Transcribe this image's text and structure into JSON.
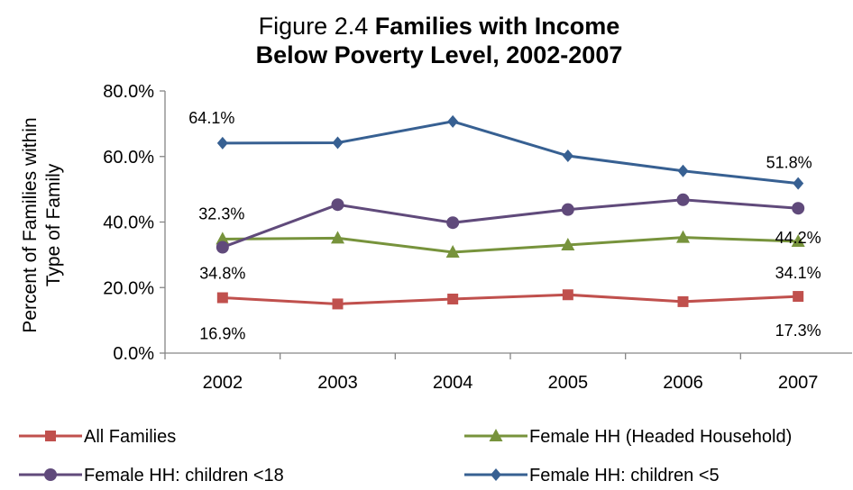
{
  "chart_data": {
    "type": "line",
    "title_prefix": "Figure 2.4 ",
    "title_bold_line1": "Families with Income",
    "title_line2": "Below Poverty Level,  2002-2007",
    "ylabel_line1": "Percent of Families within",
    "ylabel_line2": "Type of Family",
    "xlabel": "",
    "categories": [
      "2002",
      "2003",
      "2004",
      "2005",
      "2006",
      "2007"
    ],
    "ylim": [
      0,
      80
    ],
    "yticks": [
      "0.0%",
      "20.0%",
      "40.0%",
      "60.0%",
      "80.0%"
    ],
    "ytick_values": [
      0,
      20,
      40,
      60,
      80
    ],
    "grid": false,
    "legend_position": "bottom",
    "series": [
      {
        "name": "All Families",
        "color": "#C0504D",
        "marker": "square",
        "values": [
          16.9,
          15.0,
          16.5,
          17.8,
          15.7,
          17.3
        ],
        "labels": [
          {
            "index": 0,
            "text": "16.9%"
          },
          {
            "index": 5,
            "text": "17.3%"
          }
        ]
      },
      {
        "name": "Female HH (Headed Household)",
        "color": "#77933C",
        "marker": "triangle",
        "values": [
          34.8,
          35.1,
          30.8,
          33.0,
          35.3,
          34.1
        ],
        "labels": [
          {
            "index": 0,
            "text": "34.8%"
          },
          {
            "index": 5,
            "text": "34.1%"
          }
        ]
      },
      {
        "name": "Female HH: children <18",
        "color": "#604A7B",
        "marker": "circle",
        "values": [
          32.3,
          45.3,
          39.8,
          43.8,
          46.8,
          44.2
        ],
        "labels": [
          {
            "index": 0,
            "text": "32.3%"
          },
          {
            "index": 5,
            "text": "44.2%"
          }
        ]
      },
      {
        "name": "Female HH: children <5",
        "color": "#376092",
        "marker": "diamond",
        "values": [
          64.1,
          64.2,
          70.7,
          60.2,
          55.6,
          51.8
        ],
        "labels": [
          {
            "index": 0,
            "text": "64.1%"
          },
          {
            "index": 5,
            "text": "51.8%"
          }
        ]
      }
    ]
  }
}
